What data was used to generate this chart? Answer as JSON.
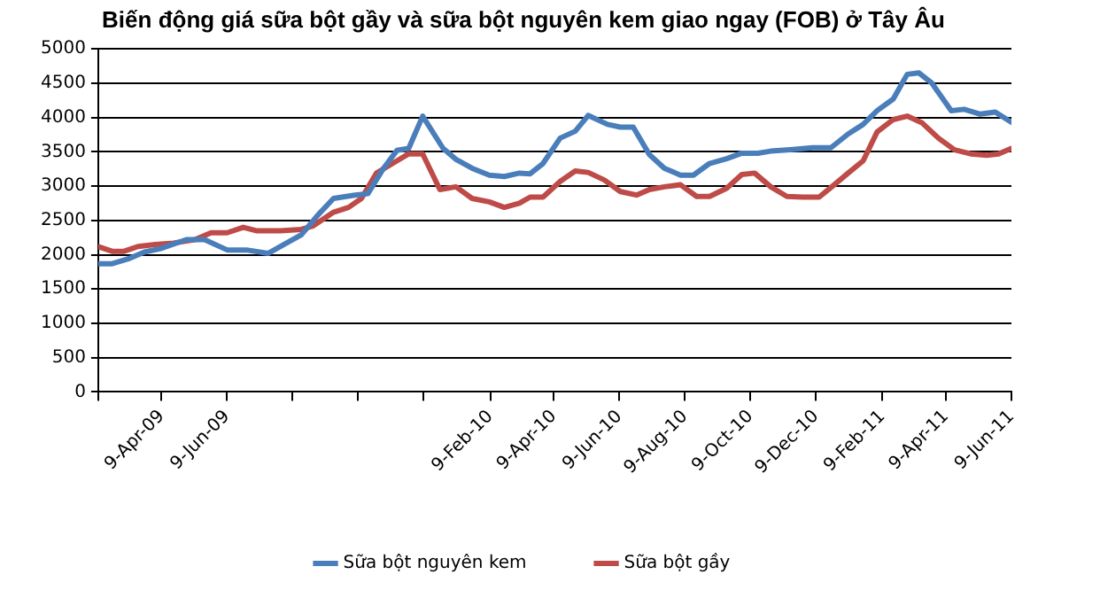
{
  "chart_data": {
    "type": "line",
    "title": "Biến động giá sữa bột gầy và sữa bột nguyên kem giao ngay (FOB) ở Tây Âu",
    "series": [
      {
        "name": "Sữa bột nguyên kem",
        "color": "#4a7ebb",
        "x": [
          "2009-02-09",
          "2009-02-22",
          "2009-03-09",
          "2009-03-24",
          "2009-04-08",
          "2009-05-02",
          "2009-05-19",
          "2009-06-09",
          "2009-06-27",
          "2009-07-17",
          "2009-08-01",
          "2009-08-17",
          "2009-09-01",
          "2009-09-16",
          "2009-10-06",
          "2009-10-18",
          "2009-11-02",
          "2009-11-14",
          "2009-11-25",
          "2009-12-08",
          "2009-12-27",
          "2010-01-08",
          "2010-01-23",
          "2010-02-08",
          "2010-02-22",
          "2010-03-08",
          "2010-03-18",
          "2010-03-30",
          "2010-04-15",
          "2010-04-29",
          "2010-05-11",
          "2010-05-29",
          "2010-06-10",
          "2010-06-22",
          "2010-07-07",
          "2010-07-21",
          "2010-08-05",
          "2010-08-17",
          "2010-09-01",
          "2010-09-17",
          "2010-10-01",
          "2010-10-16",
          "2010-10-28",
          "2010-11-15",
          "2010-12-06",
          "2010-12-23",
          "2011-01-08",
          "2011-01-22",
          "2011-02-04",
          "2011-02-19",
          "2011-03-04",
          "2011-03-15",
          "2011-03-27",
          "2011-04-14",
          "2011-04-26",
          "2011-05-11",
          "2011-05-25",
          "2011-06-09"
        ],
        "values": [
          1870,
          1870,
          1940,
          2040,
          2090,
          2220,
          2220,
          2070,
          2070,
          2020,
          2150,
          2290,
          2570,
          2820,
          2870,
          2890,
          3270,
          3520,
          3550,
          4020,
          3550,
          3390,
          3260,
          3160,
          3140,
          3190,
          3180,
          3330,
          3700,
          3800,
          4030,
          3900,
          3860,
          3860,
          3460,
          3260,
          3160,
          3160,
          3330,
          3400,
          3480,
          3480,
          3510,
          3530,
          3560,
          3560,
          3760,
          3900,
          4100,
          4270,
          4630,
          4650,
          4500,
          4100,
          4120,
          4050,
          4080,
          3930
        ]
      },
      {
        "name": "Sữa bột gầy",
        "color": "#be4b48",
        "x": [
          "2009-02-09",
          "2009-02-22",
          "2009-03-05",
          "2009-03-18",
          "2009-04-03",
          "2009-04-20",
          "2009-05-10",
          "2009-05-25",
          "2009-06-09",
          "2009-06-24",
          "2009-07-06",
          "2009-07-29",
          "2009-08-17",
          "2009-08-28",
          "2009-09-16",
          "2009-09-30",
          "2009-10-12",
          "2009-10-26",
          "2009-11-11",
          "2009-11-25",
          "2009-12-08",
          "2009-12-24",
          "2010-01-08",
          "2010-01-23",
          "2010-02-08",
          "2010-02-22",
          "2010-03-08",
          "2010-03-18",
          "2010-03-30",
          "2010-04-15",
          "2010-04-29",
          "2010-05-11",
          "2010-05-26",
          "2010-06-10",
          "2010-06-25",
          "2010-07-07",
          "2010-07-21",
          "2010-08-05",
          "2010-08-20",
          "2010-09-01",
          "2010-09-17",
          "2010-10-01",
          "2010-10-13",
          "2010-10-28",
          "2010-11-12",
          "2010-11-27",
          "2010-12-12",
          "2010-12-26",
          "2011-01-08",
          "2011-01-22",
          "2011-02-04",
          "2011-02-19",
          "2011-03-04",
          "2011-03-18",
          "2011-04-02",
          "2011-04-17",
          "2011-05-02",
          "2011-05-17",
          "2011-05-28",
          "2011-06-09"
        ],
        "values": [
          2120,
          2050,
          2050,
          2120,
          2150,
          2170,
          2220,
          2320,
          2320,
          2400,
          2350,
          2350,
          2370,
          2420,
          2620,
          2690,
          2820,
          3190,
          3340,
          3470,
          3470,
          2950,
          2990,
          2820,
          2770,
          2690,
          2750,
          2840,
          2840,
          3070,
          3220,
          3200,
          3090,
          2920,
          2870,
          2950,
          2990,
          3020,
          2850,
          2850,
          2970,
          3170,
          3190,
          2990,
          2850,
          2840,
          2840,
          3020,
          3190,
          3370,
          3790,
          3970,
          4020,
          3920,
          3700,
          3530,
          3470,
          3450,
          3470,
          3550
        ]
      }
    ],
    "xlim": [
      "2009-02-09",
      "2011-06-09"
    ],
    "xticks": [
      {
        "value": "2009-02-09",
        "label": null
      },
      {
        "value": "2009-04-09",
        "label": "9-Apr-09"
      },
      {
        "value": "2009-06-09",
        "label": "9-Jun-09"
      },
      {
        "value": "2009-08-09",
        "label": null
      },
      {
        "value": "2009-10-09",
        "label": null
      },
      {
        "value": "2009-12-09",
        "label": null
      },
      {
        "value": "2010-02-09",
        "label": "9-Feb-10"
      },
      {
        "value": "2010-04-09",
        "label": "9-Apr-10"
      },
      {
        "value": "2010-06-09",
        "label": "9-Jun-10"
      },
      {
        "value": "2010-08-09",
        "label": "9-Aug-10"
      },
      {
        "value": "2010-10-09",
        "label": "9-Oct-10"
      },
      {
        "value": "2010-12-09",
        "label": "9-Dec-10"
      },
      {
        "value": "2011-02-09",
        "label": "9-Feb-11"
      },
      {
        "value": "2011-04-09",
        "label": "9-Apr-11"
      },
      {
        "value": "2011-06-09",
        "label": "9-Jun-11"
      }
    ],
    "ylim": [
      0,
      5000
    ],
    "yticks": [
      0,
      500,
      1000,
      1500,
      2000,
      2500,
      3000,
      3500,
      4000,
      4500,
      5000
    ],
    "grid": "y",
    "legend": "bottom",
    "marker": "none",
    "line_style": "solid"
  }
}
